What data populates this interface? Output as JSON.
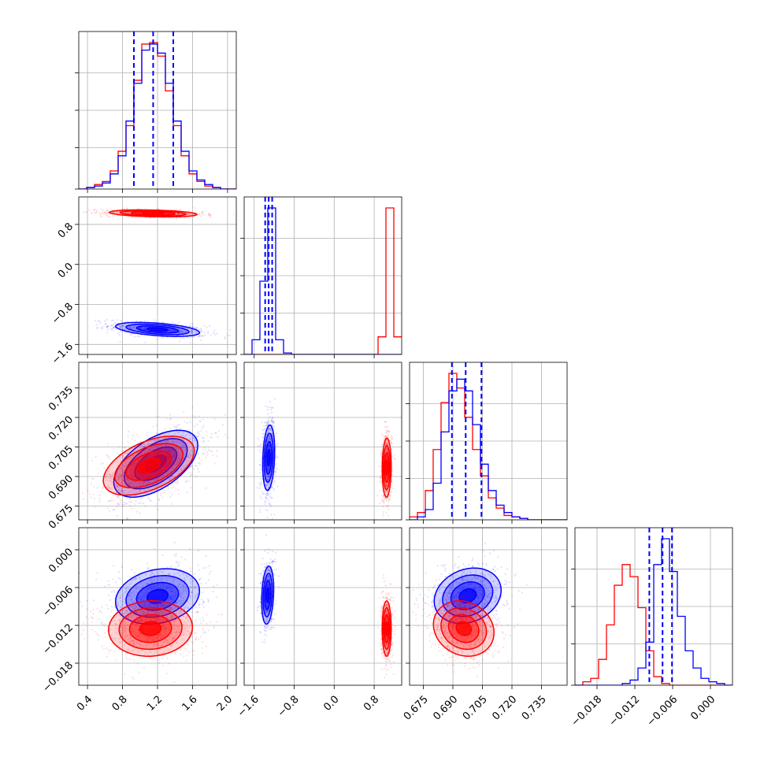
{
  "colors": {
    "run_a": "#0000ff",
    "run_b": "#ff0000",
    "quantile": "#0000ff"
  },
  "chart_data": {
    "type": "corner",
    "grid": true,
    "parameters": [
      {
        "range": [
          0.3,
          2.1
        ],
        "ticks": [
          0.4,
          0.8,
          1.2,
          1.6,
          2.0
        ],
        "labels": [
          "0.4",
          "0.8",
          "1.2",
          "1.6",
          "2.0"
        ]
      },
      {
        "range": [
          -1.8,
          1.35
        ],
        "ticks": [
          -1.6,
          -0.8,
          0.0,
          0.8
        ],
        "labels": [
          "−1.6",
          "−0.8",
          "0.0",
          "0.8"
        ]
      },
      {
        "range": [
          0.668,
          0.748
        ],
        "ticks": [
          0.675,
          0.69,
          0.705,
          0.72,
          0.735
        ],
        "labels": [
          "0.675",
          "0.690",
          "0.705",
          "0.720",
          "0.735"
        ]
      },
      {
        "range": [
          -0.0215,
          0.0035
        ],
        "ticks": [
          -0.018,
          -0.012,
          -0.006,
          0.0
        ],
        "labels": [
          "−0.018",
          "−0.012",
          "−0.006",
          "0.000"
        ]
      }
    ],
    "quantiles": [
      [
        0.93,
        1.15,
        1.38
      ],
      [
        -1.38,
        -1.31,
        -1.24
      ],
      [
        0.6895,
        0.6965,
        0.7045
      ],
      [
        -0.0097,
        -0.0076,
        -0.0061
      ]
    ],
    "histograms": [
      {
        "edges_from": 0.3,
        "width": 0.09,
        "run_a": [
          0,
          1,
          2,
          4,
          10,
          22,
          45,
          70,
          92,
          96,
          90,
          70,
          45,
          25,
          12,
          6,
          3,
          1,
          0,
          0
        ],
        "run_b": [
          0,
          1,
          3,
          5,
          12,
          25,
          42,
          72,
          96,
          97,
          88,
          65,
          42,
          22,
          10,
          5,
          2,
          1,
          0,
          0
        ]
      },
      {
        "edges_from": -1.8,
        "width": 0.1575,
        "run_a": [
          0,
          10,
          50,
          100,
          10,
          1,
          0,
          0,
          0,
          0,
          0,
          0,
          0,
          0,
          0,
          0,
          0,
          0,
          0,
          0
        ],
        "run_b": [
          0,
          0,
          0,
          0,
          0,
          0,
          0,
          0,
          0,
          0,
          0,
          0,
          0,
          0,
          0,
          0,
          0,
          12,
          100,
          12
        ]
      },
      {
        "edges_from": 0.668,
        "width": 0.004,
        "run_a": [
          0,
          2,
          7,
          25,
          60,
          88,
          96,
          88,
          65,
          38,
          20,
          10,
          5,
          2,
          1,
          0,
          0,
          0,
          0,
          0
        ],
        "run_b": [
          2,
          5,
          20,
          48,
          80,
          100,
          90,
          70,
          48,
          30,
          15,
          8,
          3,
          2,
          1,
          0,
          0,
          0,
          0,
          0
        ]
      },
      {
        "edges_from": -0.0215,
        "width": 0.00125,
        "run_a": [
          0,
          0,
          0,
          0,
          0,
          0,
          1,
          3,
          10,
          25,
          70,
          85,
          66,
          40,
          20,
          10,
          4,
          2,
          1,
          0
        ],
        "run_b": [
          0,
          2,
          4,
          15,
          35,
          58,
          70,
          63,
          45,
          20,
          5,
          1,
          0,
          0,
          0,
          0,
          0,
          0,
          0,
          0
        ]
      }
    ],
    "pairs": [
      {
        "x": 0,
        "y": 1,
        "run_a": {
          "mean": [
            1.2,
            -1.3
          ],
          "sd": [
            0.24,
            0.07
          ],
          "rho": -0.45
        },
        "run_b": {
          "mean": [
            1.15,
            1.02
          ],
          "sd": [
            0.25,
            0.035
          ],
          "rho": -0.3
        }
      },
      {
        "x": 0,
        "y": 2,
        "run_a": {
          "mean": [
            1.18,
            0.6965
          ],
          "sd": [
            0.24,
            0.0085
          ],
          "rho": 0.55
        },
        "run_b": {
          "mean": [
            1.1,
            0.6955
          ],
          "sd": [
            0.26,
            0.0075
          ],
          "rho": 0.5
        }
      },
      {
        "x": 1,
        "y": 2,
        "run_a": {
          "mean": [
            -1.31,
            0.6995
          ],
          "sd": [
            0.06,
            0.0083
          ],
          "rho": 0.2
        },
        "run_b": {
          "mean": [
            1.05,
            0.6945
          ],
          "sd": [
            0.045,
            0.0075
          ],
          "rho": 0.05
        }
      },
      {
        "x": 0,
        "y": 3,
        "run_a": {
          "mean": [
            1.2,
            -0.0074
          ],
          "sd": [
            0.24,
            0.0022
          ],
          "rho": 0.2
        },
        "run_b": {
          "mean": [
            1.12,
            -0.0125
          ],
          "sd": [
            0.24,
            0.0022
          ],
          "rho": 0.05
        }
      },
      {
        "x": 1,
        "y": 3,
        "run_a": {
          "mean": [
            -1.33,
            -0.0072
          ],
          "sd": [
            0.06,
            0.0023
          ],
          "rho": 0.2
        },
        "run_b": {
          "mean": [
            1.05,
            -0.0125
          ],
          "sd": [
            0.045,
            0.0022
          ],
          "rho": 0.0
        }
      },
      {
        "x": 2,
        "y": 3,
        "run_a": {
          "mean": [
            0.6975,
            -0.0073
          ],
          "sd": [
            0.0085,
            0.0022
          ],
          "rho": 0.2
        },
        "run_b": {
          "mean": [
            0.6955,
            -0.0125
          ],
          "sd": [
            0.0077,
            0.0022
          ],
          "rho": -0.15
        }
      }
    ],
    "contour_levels_sigma": [
      0.5,
      1.0,
      1.5,
      2.0
    ]
  }
}
